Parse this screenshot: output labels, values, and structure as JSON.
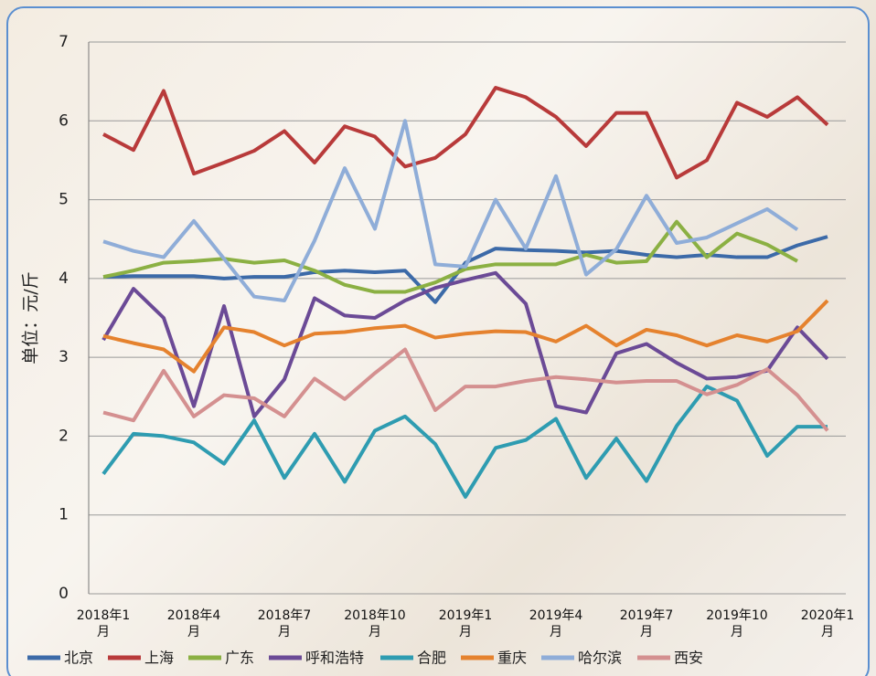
{
  "chart_data": {
    "type": "line",
    "y_label": "单位：元/斤",
    "categories": [
      "2018年1月",
      null,
      null,
      "2018年4月",
      null,
      null,
      "2018年7月",
      null,
      null,
      "2018年10月",
      null,
      null,
      "2019年1月",
      null,
      null,
      "2019年4月",
      null,
      null,
      "2019年7月",
      null,
      null,
      "2019年10月",
      null,
      null,
      "2020年1月"
    ],
    "ylim": [
      0,
      7
    ],
    "yticks": [
      0,
      1,
      2,
      3,
      4,
      5,
      6,
      7
    ],
    "grid": true,
    "legend": "bottom",
    "series": [
      {
        "name": "北京",
        "color": "#3c6aa8",
        "values": [
          4.02,
          4.03,
          4.03,
          4.03,
          4.0,
          4.02,
          4.02,
          4.08,
          4.1,
          4.08,
          4.1,
          3.7,
          4.2,
          4.38,
          4.36,
          4.35,
          4.33,
          4.35,
          4.3,
          4.27,
          4.3,
          4.27,
          4.27,
          4.42,
          4.53
        ]
      },
      {
        "name": "上海",
        "color": "#b83a3a",
        "values": [
          5.83,
          5.63,
          6.38,
          5.33,
          5.47,
          5.62,
          5.87,
          5.47,
          5.93,
          5.8,
          5.42,
          5.53,
          5.83,
          6.42,
          6.3,
          6.05,
          5.68,
          6.1,
          6.1,
          5.28,
          5.5,
          6.23,
          6.05,
          6.3,
          5.95
        ]
      },
      {
        "name": "广东",
        "color": "#8bb043",
        "values": [
          4.02,
          4.1,
          4.2,
          4.22,
          4.25,
          4.2,
          4.23,
          4.1,
          3.92,
          3.83,
          3.83,
          3.95,
          4.12,
          4.18,
          4.18,
          4.18,
          4.3,
          4.2,
          4.22,
          4.72,
          4.27,
          4.57,
          4.43,
          4.22,
          null
        ]
      },
      {
        "name": "呼和浩特",
        "color": "#6b4a96",
        "values": [
          3.22,
          3.87,
          3.5,
          2.38,
          3.65,
          2.25,
          2.72,
          3.75,
          3.53,
          3.5,
          3.72,
          3.88,
          3.98,
          4.07,
          3.68,
          2.38,
          2.3,
          3.05,
          3.17,
          2.93,
          2.73,
          2.75,
          2.83,
          3.38,
          2.98
        ]
      },
      {
        "name": "合肥",
        "color": "#2e9cb1",
        "values": [
          1.52,
          2.03,
          2.0,
          1.92,
          1.65,
          2.2,
          1.47,
          2.03,
          1.42,
          2.07,
          2.25,
          1.9,
          1.23,
          1.85,
          1.95,
          2.22,
          1.47,
          1.97,
          1.43,
          2.13,
          2.63,
          2.45,
          1.75,
          2.12,
          2.12
        ]
      },
      {
        "name": "重庆",
        "color": "#e5822e",
        "values": [
          3.27,
          3.18,
          3.1,
          2.82,
          3.38,
          3.32,
          3.15,
          3.3,
          3.32,
          3.37,
          3.4,
          3.25,
          3.3,
          3.33,
          3.32,
          3.2,
          3.4,
          3.15,
          3.35,
          3.28,
          3.15,
          3.28,
          3.2,
          3.33,
          3.72
        ]
      },
      {
        "name": "哈尔滨",
        "color": "#8fadd8",
        "values": [
          4.47,
          4.35,
          4.27,
          4.73,
          4.25,
          3.77,
          3.72,
          4.48,
          5.4,
          4.63,
          6.0,
          4.18,
          4.15,
          5.0,
          4.38,
          5.3,
          4.05,
          4.37,
          5.05,
          4.45,
          4.52,
          4.7,
          4.88,
          4.62,
          null
        ]
      },
      {
        "name": "西安",
        "color": "#d49090",
        "values": [
          2.3,
          2.2,
          2.83,
          2.25,
          2.52,
          2.48,
          2.25,
          2.73,
          2.47,
          2.8,
          3.1,
          2.33,
          2.63,
          2.63,
          2.7,
          2.75,
          2.72,
          2.68,
          2.7,
          2.7,
          2.53,
          2.65,
          2.85,
          2.52,
          2.07
        ]
      }
    ]
  }
}
